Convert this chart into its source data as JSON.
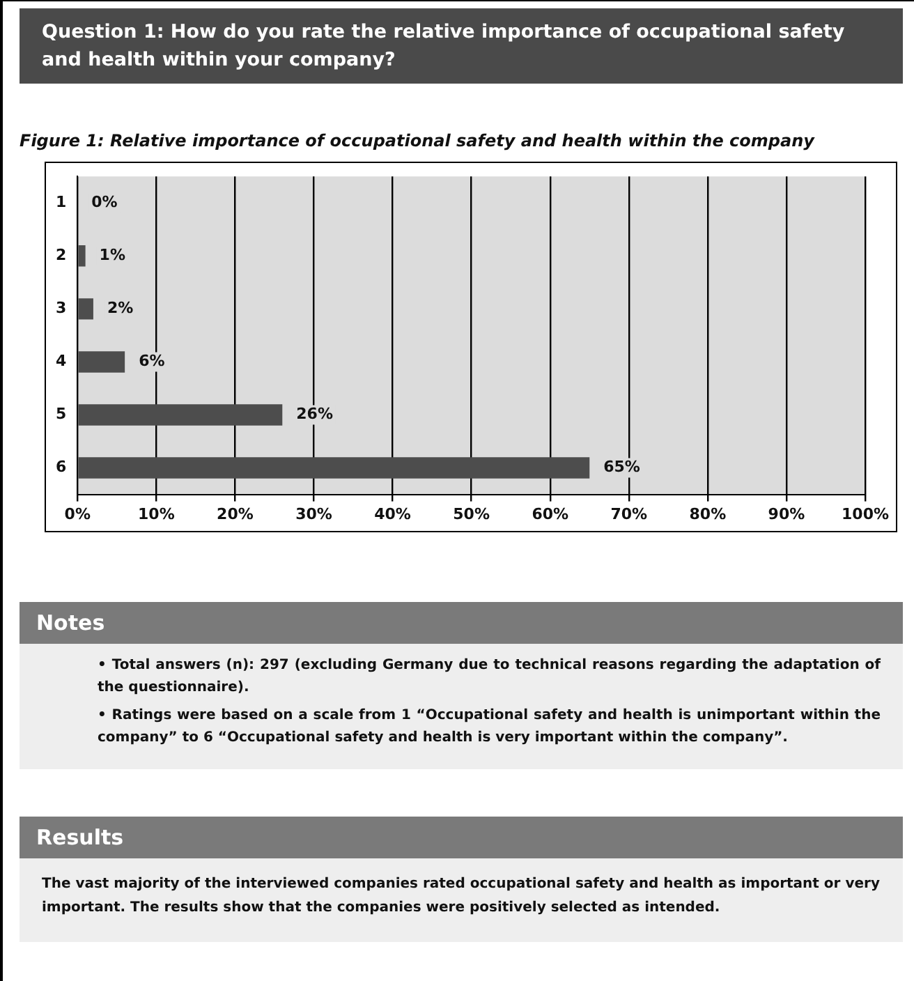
{
  "chart_data": {
    "type": "bar",
    "orientation": "horizontal",
    "title": "Question 1: How do you rate the relative importance of occupational safety and health within your company?",
    "subtitle": "Figure 1: Relative importance of occupational safety and health within the company",
    "categories": [
      "1",
      "2",
      "3",
      "4",
      "5",
      "6"
    ],
    "values": [
      0,
      1,
      2,
      6,
      26,
      65
    ],
    "value_labels": [
      "0%",
      "1%",
      "2%",
      "6%",
      "26%",
      "65%"
    ],
    "color": "#4d4d4d",
    "xlim": [
      0,
      100
    ],
    "xticks": [
      {
        "value": 0,
        "label": "0%"
      },
      {
        "value": 10,
        "label": "10%"
      },
      {
        "value": 20,
        "label": "20%"
      },
      {
        "value": 30,
        "label": "30%"
      },
      {
        "value": 40,
        "label": "40%"
      },
      {
        "value": 50,
        "label": "50%"
      },
      {
        "value": 60,
        "label": "60%"
      },
      {
        "value": 70,
        "label": "70%"
      },
      {
        "value": 80,
        "label": "80%"
      },
      {
        "value": 90,
        "label": "90%"
      },
      {
        "value": 100,
        "label": "100%"
      }
    ],
    "grid": "x",
    "legend": false,
    "annotations": [
      "Notes",
      "• Total answers (n): 297 (excluding Germany due to technical reasons regarding the adaptation of the questionnaire).",
      "• Ratings were based on a scale from 1 “Occupational safety and health is unimportant within the company” to 6 “Occupational safety and health is very important within the company”.",
      "Results",
      "The vast majority of the interviewed companies rated occupational safety and health as important or very important. The results show that the companies were positively selected as intended."
    ]
  }
}
